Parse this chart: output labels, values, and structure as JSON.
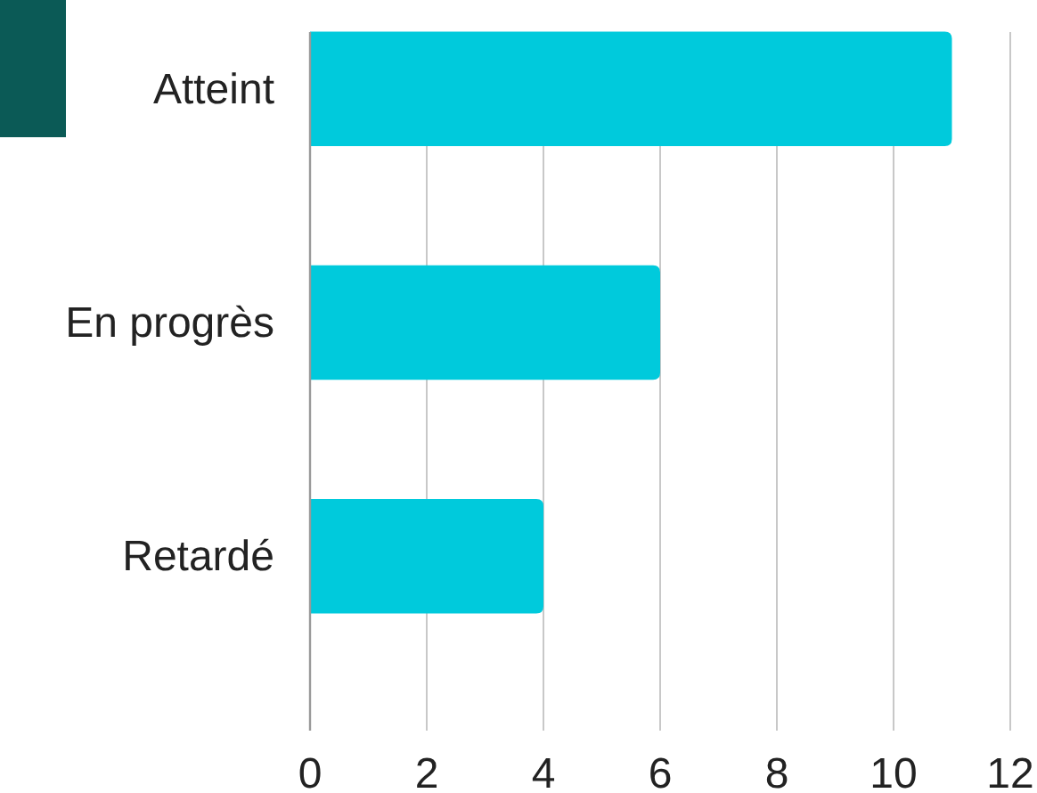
{
  "chart_data": {
    "type": "bar",
    "orientation": "horizontal",
    "categories": [
      "Atteint",
      "En progrès",
      "Retardé"
    ],
    "values": [
      11,
      6,
      4
    ],
    "color": "#00cadc",
    "xlim": [
      0,
      12
    ],
    "xticks": [
      0,
      2,
      4,
      6,
      8,
      10,
      12
    ],
    "grid": "x"
  }
}
